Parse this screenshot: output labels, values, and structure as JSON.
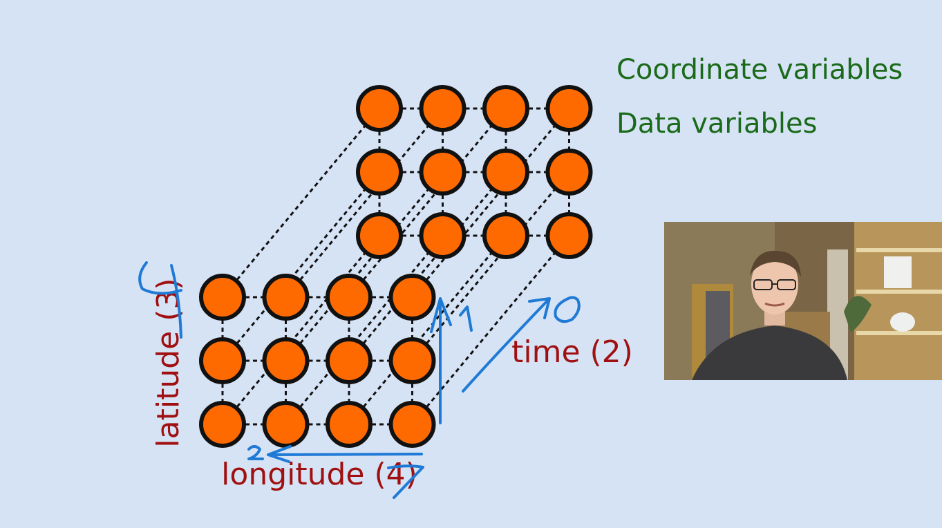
{
  "legend": {
    "coordinate_variables": "Coordinate variables",
    "data_variables": "Data variables"
  },
  "diagram": {
    "latitude_label": "latitude (3)",
    "longitude_label": "longitude (4)",
    "time_label": "time (2)",
    "grid_rows": 3,
    "grid_cols": 4,
    "time_steps": 2,
    "colors": {
      "node_fill": "#ff6a00",
      "node_stroke": "#111111",
      "axis_label": "#a01010",
      "annotation": "#1f7ad6",
      "legend_text": "#1a6a1a",
      "background": "#d6e3f5"
    }
  },
  "annotations": {
    "latitude_index": "1",
    "longitude_index": "2",
    "time_index": "0"
  },
  "webcam": {
    "description_icon": "presenter-video-icon"
  }
}
